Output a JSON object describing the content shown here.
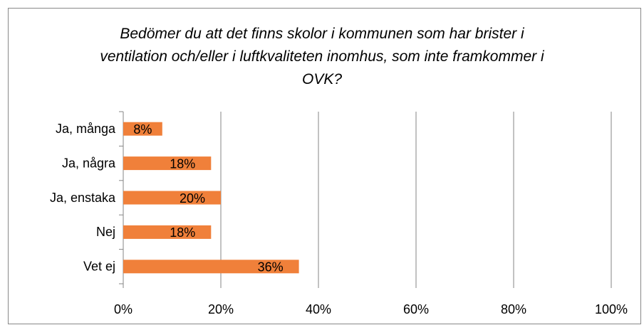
{
  "chart_data": {
    "type": "bar",
    "orientation": "horizontal",
    "title": "Bedömer du att det finns skolor i kommunen som har brister i ventilation och/eller i luftkvaliteten inomhus, som inte framkommer i OVK?",
    "categories": [
      "Ja, många",
      "Ja, några",
      "Ja, enstaka",
      "Nej",
      "Vet ej"
    ],
    "values": [
      8,
      18,
      20,
      18,
      36
    ],
    "value_labels": [
      "8%",
      "18%",
      "20%",
      "18%",
      "36%"
    ],
    "color": "#f0803a",
    "xlim": [
      0,
      100
    ],
    "xticks": [
      {
        "value": 0,
        "label": "0%"
      },
      {
        "value": 20,
        "label": "20%"
      },
      {
        "value": 40,
        "label": "40%"
      },
      {
        "value": 60,
        "label": "60%"
      },
      {
        "value": 80,
        "label": "80%"
      },
      {
        "value": 100,
        "label": "100%"
      }
    ],
    "grid": true
  }
}
